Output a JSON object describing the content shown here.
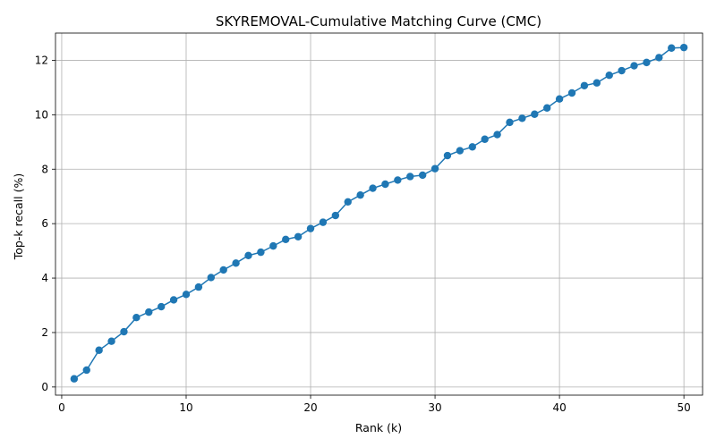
{
  "chart_data": {
    "type": "line",
    "title": "SKYREMOVAL-Cumulative Matching Curve (CMC)",
    "xlabel": "Rank (k)",
    "ylabel": "Top-k recall (%)",
    "xlim": [
      -0.5,
      51.5
    ],
    "ylim": [
      -0.3,
      13.0
    ],
    "xticks": [
      0,
      10,
      20,
      30,
      40,
      50
    ],
    "yticks": [
      0,
      2,
      4,
      6,
      8,
      10,
      12
    ],
    "grid": true,
    "color": "#1f77b4",
    "x": [
      1,
      2,
      3,
      4,
      5,
      6,
      7,
      8,
      9,
      10,
      11,
      12,
      13,
      14,
      15,
      16,
      17,
      18,
      19,
      20,
      21,
      22,
      23,
      24,
      25,
      26,
      27,
      28,
      29,
      30,
      31,
      32,
      33,
      34,
      35,
      36,
      37,
      38,
      39,
      40,
      41,
      42,
      43,
      44,
      45,
      46,
      47,
      48,
      49,
      50
    ],
    "y": [
      0.3,
      0.62,
      1.35,
      1.68,
      2.03,
      2.55,
      2.75,
      2.95,
      3.2,
      3.4,
      3.67,
      4.02,
      4.3,
      4.55,
      4.83,
      4.95,
      5.18,
      5.42,
      5.52,
      5.82,
      6.05,
      6.3,
      6.8,
      7.05,
      7.3,
      7.45,
      7.6,
      7.73,
      7.78,
      8.02,
      8.5,
      8.68,
      8.82,
      9.1,
      9.27,
      9.72,
      9.87,
      10.02,
      10.25,
      10.58,
      10.8,
      11.07,
      11.17,
      11.45,
      11.62,
      11.8,
      11.92,
      12.1,
      12.45,
      12.47
    ]
  }
}
